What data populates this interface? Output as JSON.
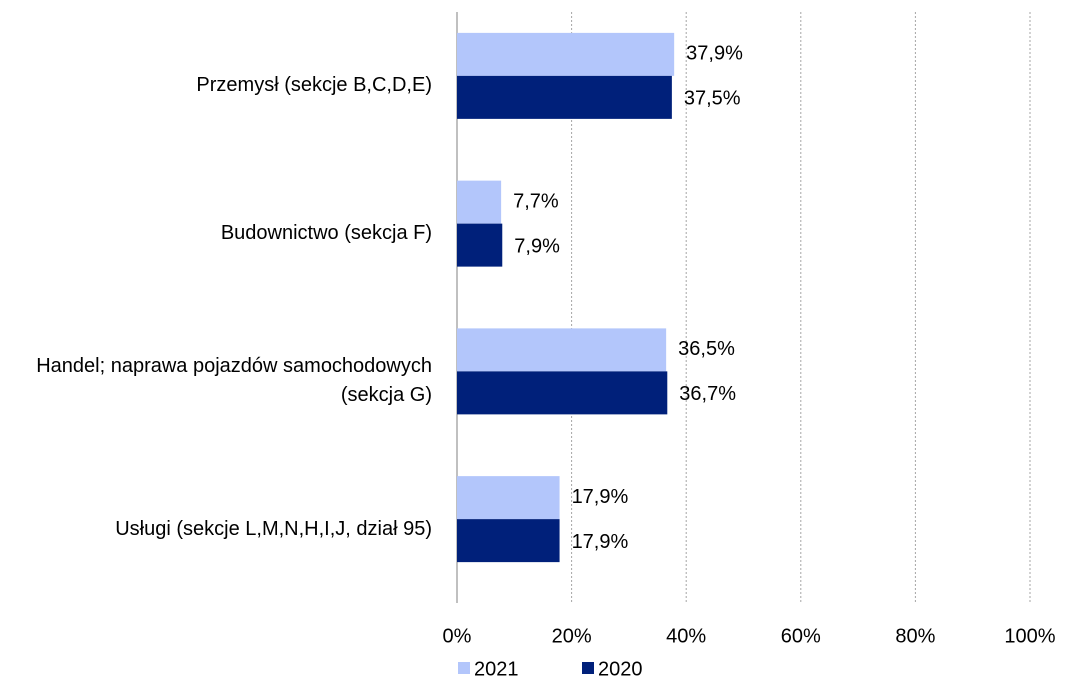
{
  "chart_data": {
    "type": "bar",
    "orientation": "horizontal",
    "categories": [
      "Przemysł (sekcje B,C,D,E)",
      "Budownictwo (sekcja F)",
      "Handel; naprawa pojazdów samochodowych (sekcja G)",
      "Usługi (sekcje L,M,N,H,I,J, dział 95)"
    ],
    "series": [
      {
        "name": "2021",
        "color": "#b3c6fb",
        "values": [
          37.9,
          7.7,
          36.5,
          17.9
        ],
        "value_labels": [
          "37,9%",
          "7,7%",
          "36,5%",
          "17,9%"
        ]
      },
      {
        "name": "2020",
        "color": "#00207a",
        "values": [
          37.5,
          7.9,
          36.7,
          17.9
        ],
        "value_labels": [
          "37,5%",
          "7,9%",
          "36,7%",
          "17,9%"
        ]
      }
    ],
    "xlim": [
      0,
      100
    ],
    "xticks": [
      {
        "value": 0,
        "label": "0%"
      },
      {
        "value": 20,
        "label": "20%"
      },
      {
        "value": 40,
        "label": "40%"
      },
      {
        "value": 60,
        "label": "60%"
      },
      {
        "value": 80,
        "label": "80%"
      },
      {
        "value": 100,
        "label": "100%"
      }
    ],
    "grid": true,
    "legend": "bottom"
  }
}
